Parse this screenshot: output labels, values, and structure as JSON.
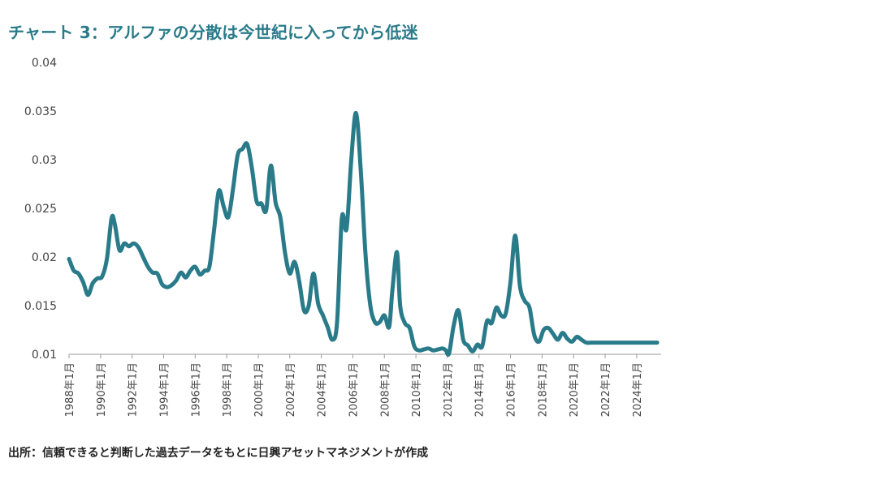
{
  "title": "チャート 3：アルファの分散は今世紀に入ってから低迷",
  "source": "出所：信頼できると判断した過去データをもとに日興アセットマネジメントが作成",
  "colors": {
    "line": "#2a7b8a",
    "title": "#2a7b8a",
    "axis": "#999999"
  },
  "chart_data": {
    "type": "line",
    "title": "チャート 3：アルファの分散は今世紀に入ってから低迷",
    "xlabel": "",
    "ylabel": "",
    "ylim": [
      0.01,
      0.04
    ],
    "y_ticks": [
      "0.04",
      "0.035",
      "0.03",
      "0.025",
      "0.02",
      "0.015",
      "0.01"
    ],
    "x_ticks": [
      "1988年1月",
      "1990年1月",
      "1992年1月",
      "1994年1月",
      "1996年1月",
      "1998年1月",
      "2000年1月",
      "2002年1月",
      "2004年1月",
      "2006年1月",
      "2008年1月",
      "2010年1月",
      "2012年1月",
      "2014年1月",
      "2016年1月",
      "2018年1月",
      "2020年1月",
      "2022年1月",
      "2024年1月"
    ],
    "x_range": [
      1988.0,
      2025.5
    ],
    "grid": false,
    "series": [
      {
        "x": [
          1988.0,
          1988.3,
          1988.6,
          1988.9,
          1989.2,
          1989.5,
          1989.8,
          1990.1,
          1990.4,
          1990.7,
          1990.9,
          1991.2,
          1991.5,
          1991.8,
          1992.1,
          1992.4,
          1992.7,
          1993.0,
          1993.3,
          1993.6,
          1993.9,
          1994.2,
          1994.5,
          1994.8,
          1995.1,
          1995.4,
          1995.7,
          1996.0,
          1996.3,
          1996.6,
          1996.9,
          1997.2,
          1997.5,
          1997.8,
          1998.1,
          1998.4,
          1998.7,
          1999.0,
          1999.3,
          1999.6,
          1999.9,
          2000.2,
          2000.5,
          2000.8,
          2001.1,
          2001.4,
          2001.7,
          2002.0,
          2002.3,
          2002.6,
          2002.9,
          2003.2,
          2003.5,
          2003.8,
          2004.1,
          2004.4,
          2004.7,
          2005.0,
          2005.3,
          2005.6,
          2005.9,
          2006.2,
          2006.5,
          2006.8,
          2007.1,
          2007.4,
          2007.7,
          2008.0,
          2008.3,
          2008.5,
          2008.8,
          2009.0,
          2009.3,
          2009.6,
          2009.9,
          2010.2,
          2010.5,
          2010.8,
          2011.1,
          2011.4,
          2011.7,
          2011.9,
          2012.1,
          2012.4,
          2012.7,
          2013.0,
          2013.3,
          2013.6,
          2013.9,
          2014.2,
          2014.5,
          2014.8,
          2015.1,
          2015.4,
          2015.7,
          2016.0,
          2016.3,
          2016.6,
          2016.9,
          2017.2,
          2017.5,
          2017.8,
          2018.1,
          2018.4,
          2018.7,
          2019.0,
          2019.3,
          2019.6,
          2019.9,
          2020.2,
          2020.5,
          2020.8,
          2021.1,
          2021.4,
          2021.7,
          2022.0,
          2022.3,
          2022.6,
          2022.9,
          2023.2,
          2023.5,
          2023.8,
          2024.1,
          2024.4,
          2024.7,
          2025.0,
          2025.3
        ],
        "values": [
          0.0198,
          0.0186,
          0.0183,
          0.0174,
          0.0161,
          0.0173,
          0.0178,
          0.018,
          0.0198,
          0.024,
          0.0234,
          0.0207,
          0.0214,
          0.0211,
          0.0214,
          0.021,
          0.02,
          0.019,
          0.0184,
          0.0183,
          0.0172,
          0.0169,
          0.0171,
          0.0176,
          0.0184,
          0.0179,
          0.0186,
          0.019,
          0.0182,
          0.0186,
          0.019,
          0.0228,
          0.0268,
          0.0252,
          0.0241,
          0.027,
          0.0305,
          0.0311,
          0.0316,
          0.0291,
          0.0257,
          0.0255,
          0.0248,
          0.0294,
          0.0256,
          0.0241,
          0.0204,
          0.0183,
          0.0195,
          0.0175,
          0.0145,
          0.015,
          0.0183,
          0.0152,
          0.014,
          0.0128,
          0.0115,
          0.0133,
          0.024,
          0.0229,
          0.03,
          0.0348,
          0.029,
          0.0203,
          0.0151,
          0.0133,
          0.0133,
          0.014,
          0.0128,
          0.0165,
          0.0205,
          0.015,
          0.0132,
          0.0127,
          0.0108,
          0.0104,
          0.0105,
          0.0106,
          0.0104,
          0.0105,
          0.0106,
          0.0104,
          0.0101,
          0.013,
          0.0145,
          0.0115,
          0.0109,
          0.0103,
          0.011,
          0.0108,
          0.0134,
          0.0132,
          0.0148,
          0.014,
          0.0142,
          0.0175,
          0.0222,
          0.017,
          0.0155,
          0.0148,
          0.012,
          0.0113,
          0.0125,
          0.0127,
          0.0121,
          0.0115,
          0.0122,
          0.0116,
          0.0113,
          0.0118,
          0.0115,
          0.0112,
          0.0112,
          0.0112,
          0.0112,
          0.0112,
          0.0112,
          0.0112,
          0.0112,
          0.0112,
          0.0112,
          0.0112,
          0.0112,
          0.0112,
          0.0112,
          0.0112,
          0.0112
        ]
      }
    ]
  }
}
